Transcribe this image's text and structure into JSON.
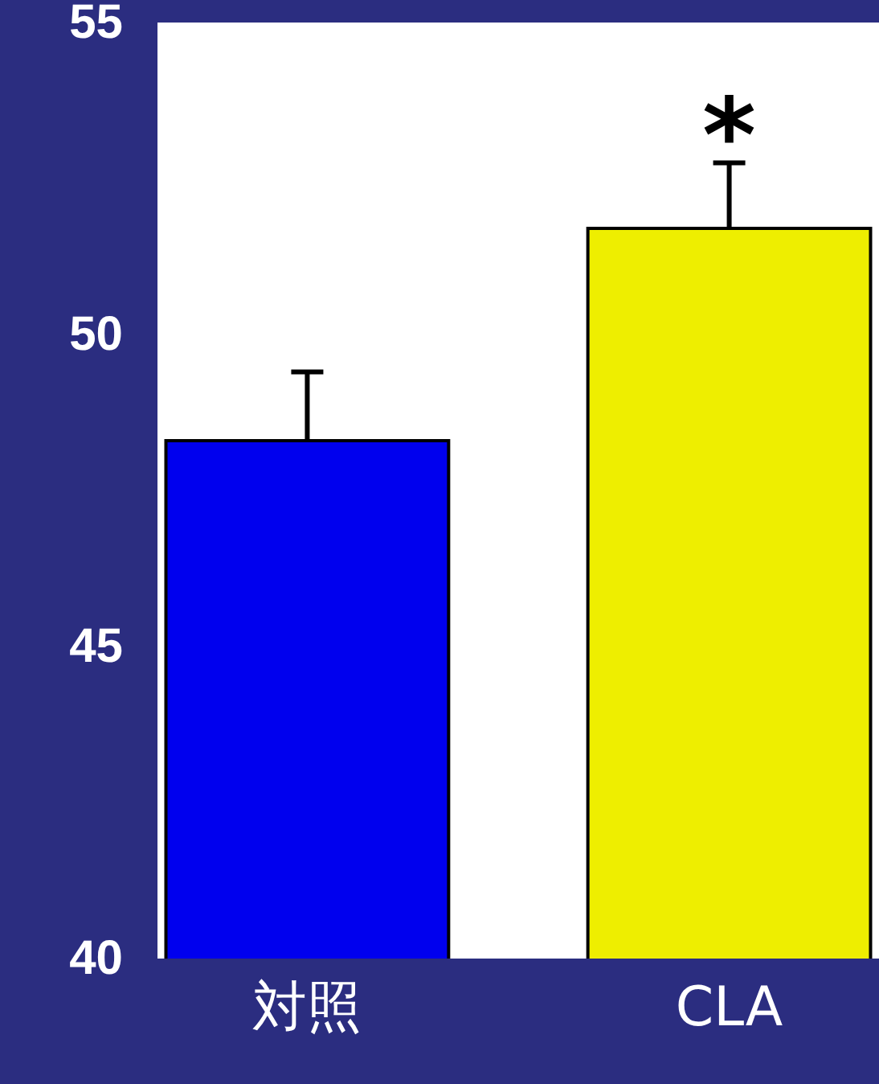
{
  "chart_data": {
    "type": "bar",
    "categories": [
      "対照",
      "CLA"
    ],
    "values": [
      48.3,
      51.7
    ],
    "colors": [
      "#0000ee",
      "#eeee00"
    ],
    "errors": [
      [
        48.3,
        49.4
      ],
      [
        51.7,
        52.75
      ]
    ],
    "ylim": [
      40,
      55
    ],
    "yticks": [
      40,
      45,
      50,
      55
    ],
    "annotations": [
      {
        "text": "*",
        "x": "CLA",
        "y": 52.8
      }
    ]
  }
}
